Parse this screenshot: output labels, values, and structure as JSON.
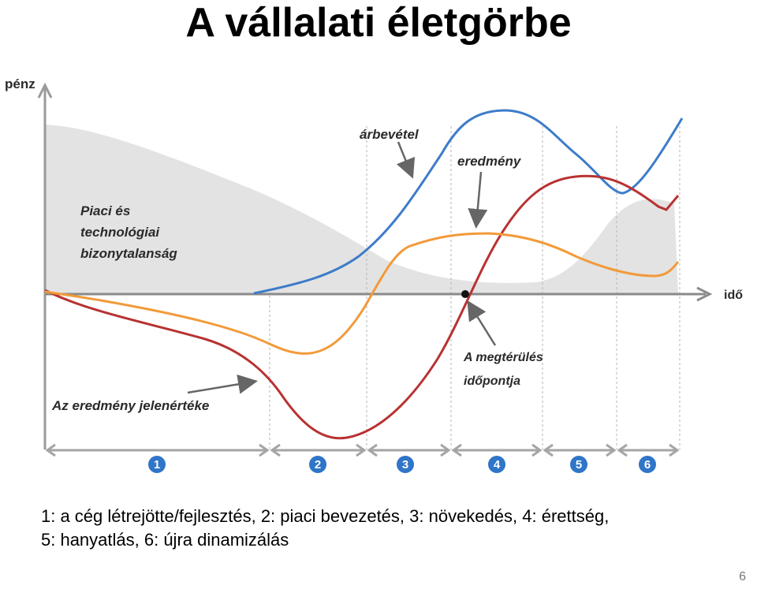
{
  "title": "A vállalati életgörbe",
  "diagram": {
    "y_axis_label": "pénz",
    "x_axis_label": "idő",
    "uncertainty_label": [
      "Piaci és",
      "technológiai",
      "bizonytalanság"
    ],
    "revenue_label": "árbevétel",
    "result_label": "eredmény",
    "present_value_label": "Az eredmény jelenértéke",
    "payback_label": [
      "A megtérülés",
      "időpontja"
    ],
    "phases": [
      "1",
      "2",
      "3",
      "4",
      "5",
      "6"
    ],
    "colors": {
      "revenue": "#3d7cc9",
      "result": "#b83232",
      "present_value": "#f29a3a",
      "uncertainty": "#e3e3e3",
      "phase_badge": "#2f75c8"
    }
  },
  "caption": {
    "line1": "1: a cég létrejötte/fejlesztés, 2: piaci bevezetés, 3: növekedés, 4: érettség,",
    "line2": "5: hanyatlás, 6: újra dinamizálás"
  },
  "page_number": "6"
}
